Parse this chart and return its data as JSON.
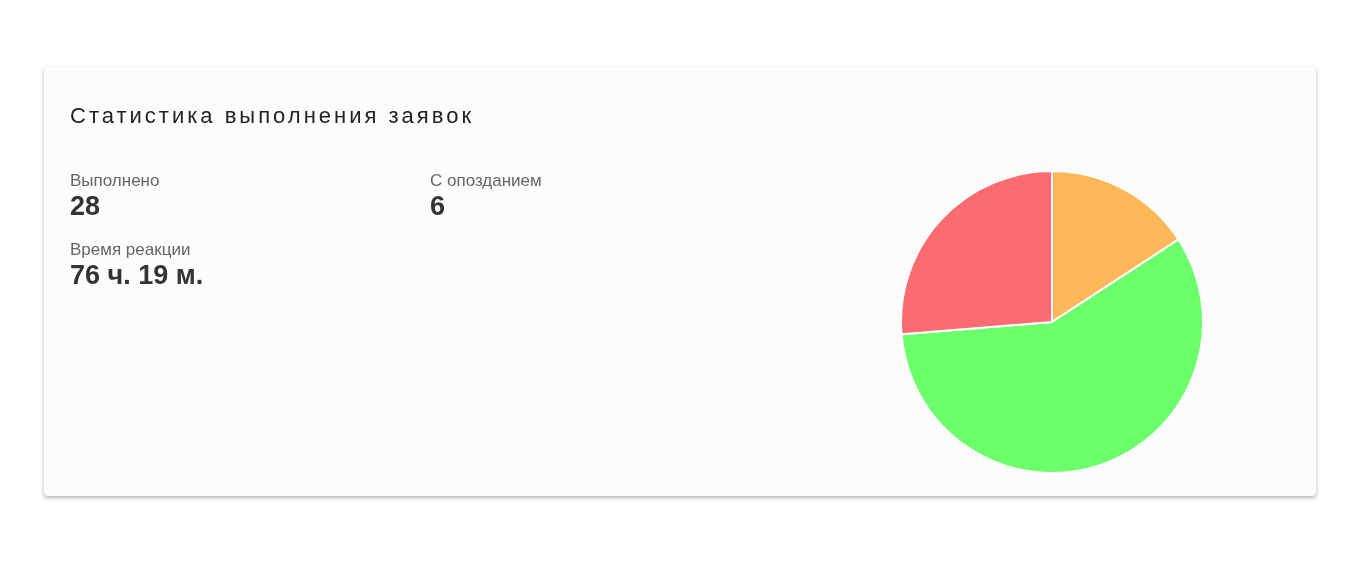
{
  "chart_data": {
    "type": "pie",
    "title": "Статистика выполнения заявок",
    "annotations": [
      "Выполнено",
      "28",
      "С опозданием",
      "6",
      "Время реакции",
      "76 ч. 19 м."
    ],
    "categories": [
      null,
      null,
      null
    ],
    "values": [
      15.8,
      57.9,
      26.3
    ],
    "colors": [
      "#ffb75a",
      "#6cff6c",
      "#fc6a72"
    ],
    "legend": false
  }
}
